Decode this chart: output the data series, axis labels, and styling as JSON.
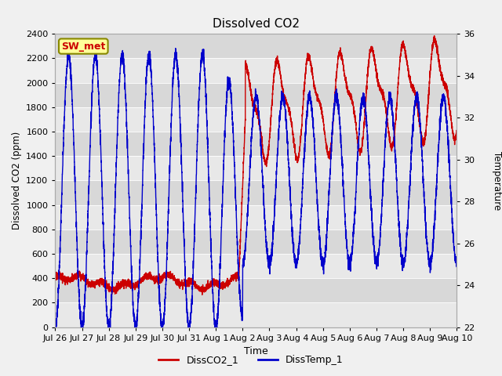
{
  "title": "Dissolved CO2",
  "xlabel": "Time",
  "ylabel_left": "Dissolved CO2 (ppm)",
  "ylabel_right": "Temperature",
  "left_ylim": [
    0,
    2400
  ],
  "right_ylim": [
    22,
    36
  ],
  "fig_facecolor": "#f0f0f0",
  "plot_facecolor": "#e8e8e8",
  "line_co2_color": "#cc0000",
  "line_temp_color": "#0000cc",
  "legend_labels": [
    "DissCO2_1",
    "DissTemp_1"
  ],
  "sw_met_label": "SW_met",
  "sw_met_bg": "#ffff99",
  "sw_met_border": "#888800",
  "sw_met_textcolor": "#cc0000",
  "tick_label_dates": [
    "Jul 26",
    "Jul 27",
    "Jul 28",
    "Jul 29",
    "Jul 30",
    "Jul 31",
    "Aug 1",
    "Aug 2",
    "Aug 3",
    "Aug 4",
    "Aug 5",
    "Aug 6",
    "Aug 7",
    "Aug 8",
    "Aug 9",
    "Aug 10"
  ],
  "right_yticks": [
    22,
    24,
    26,
    28,
    30,
    32,
    34,
    36
  ],
  "left_yticks": [
    0,
    200,
    400,
    600,
    800,
    1000,
    1200,
    1400,
    1600,
    1800,
    2000,
    2200,
    2400
  ],
  "band_colors": [
    "#e8e8e8",
    "#d8d8d8"
  ]
}
